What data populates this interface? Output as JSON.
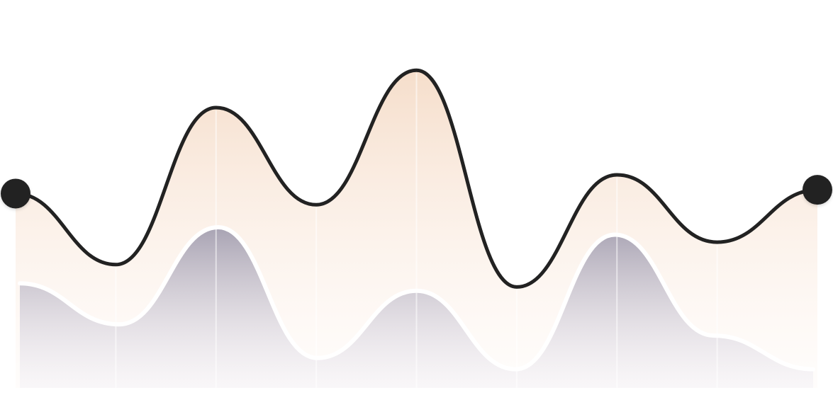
{
  "chart_data": {
    "type": "area",
    "x": [
      0,
      1,
      2,
      3,
      4,
      5,
      6,
      7,
      8
    ],
    "ylim": [
      0,
      100
    ],
    "grid": false,
    "legend": "none",
    "endpoint_markers": true,
    "series": [
      {
        "style": "line-with-area",
        "color": "#222222",
        "fill_color": "#f5dcc8",
        "values": [
          52,
          33,
          75,
          49,
          85,
          27,
          57,
          39,
          53
        ]
      },
      {
        "style": "area",
        "color": "#a8a3b3",
        "values": [
          28,
          17,
          43,
          8,
          26,
          5,
          41,
          14,
          5
        ]
      }
    ]
  }
}
